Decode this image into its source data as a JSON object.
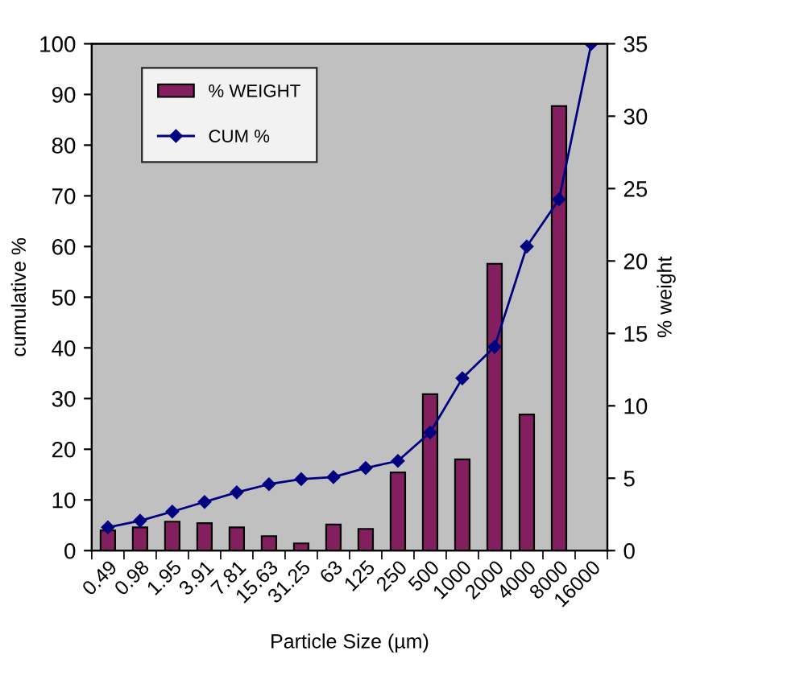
{
  "chart_data": {
    "type": "bar",
    "xlabel": "Particle Size (µm)",
    "ylabel": "cumulative %",
    "y2label": "% weight",
    "categories": [
      "0.49",
      "0.98",
      "1.95",
      "3.91",
      "7.81",
      "15.63",
      "31.25",
      "63",
      "125",
      "250",
      "500",
      "1000",
      "2000",
      "4000",
      "8000",
      "16000"
    ],
    "series": [
      {
        "name": "% WEIGHT",
        "axis": "y2",
        "color": "#841f5f",
        "values": [
          1.4,
          1.6,
          2.0,
          1.9,
          1.6,
          1.0,
          0.5,
          1.8,
          1.5,
          5.4,
          10.8,
          6.3,
          19.8,
          9.4,
          30.7,
          null
        ]
      },
      {
        "name": "CUM %",
        "type": "line",
        "color": "#000080",
        "marker": "diamond",
        "values": [
          4.6,
          5.9,
          7.7,
          9.6,
          11.5,
          13.1,
          14.1,
          14.5,
          16.3,
          17.7,
          23.3,
          34.0,
          40.2,
          60.0,
          69.3,
          100
        ]
      }
    ],
    "ylim": [
      0,
      100
    ],
    "yticks": [
      0,
      10,
      20,
      30,
      40,
      50,
      60,
      70,
      80,
      90,
      100
    ],
    "y2lim": [
      0,
      35
    ],
    "y2ticks": [
      0,
      5,
      10,
      15,
      20,
      25,
      30,
      35
    ],
    "grid": false,
    "legend": "top left"
  }
}
